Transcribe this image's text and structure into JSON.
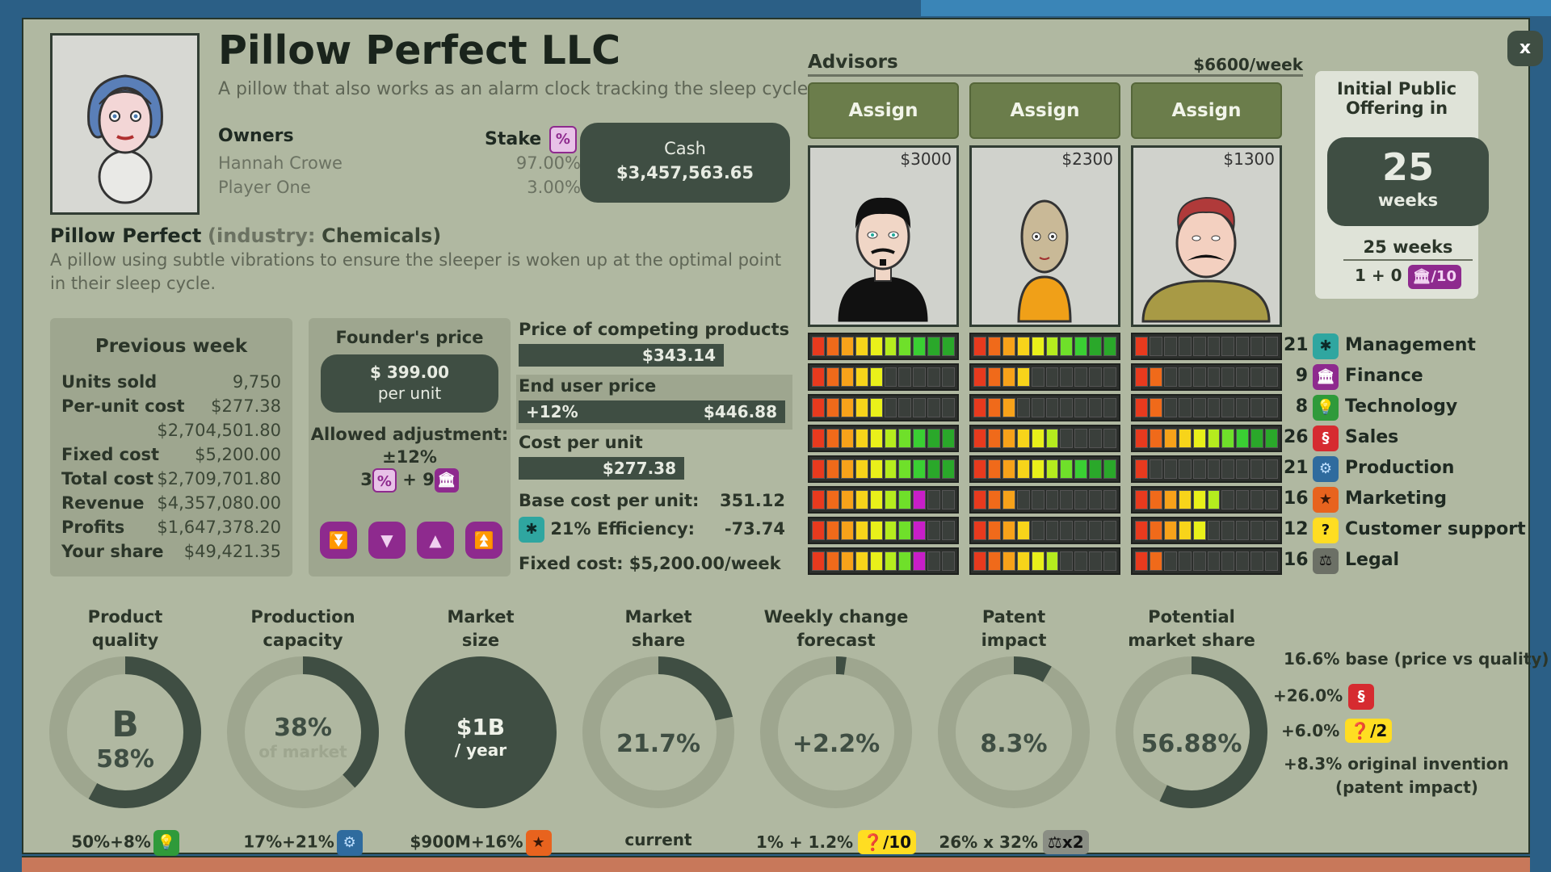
{
  "company": {
    "name": "Pillow Perfect LLC",
    "tagline": "A pillow that also works as an alarm clock tracking the sleep cycle.",
    "owners_header": "Owners",
    "stake_header": "Stake",
    "owners": [
      {
        "name": "Hannah Crowe",
        "stake": "97.00%"
      },
      {
        "name": "Player One",
        "stake": "3.00%"
      }
    ],
    "cash_label": "Cash",
    "cash_value": "$3,457,563.65"
  },
  "product": {
    "name": "Pillow Perfect",
    "industry_prefix": "(industry:",
    "industry": "Chemicals)",
    "description": "A pillow using subtle vibrations to ensure the sleeper is woken up at the optimal point in their sleep cycle."
  },
  "previous_week": {
    "title": "Previous week",
    "rows": [
      {
        "label": "Units sold",
        "value": "9,750"
      },
      {
        "label": "Per-unit cost",
        "value": "$277.38"
      },
      {
        "label": "",
        "value": "$2,704,501.80"
      },
      {
        "label": "Fixed cost",
        "value": "$5,200.00"
      },
      {
        "label": "Total cost",
        "value": "$2,709,701.80"
      },
      {
        "label": "Revenue",
        "value": "$4,357,080.00"
      },
      {
        "label": "Profits",
        "value": "$1,647,378.20"
      },
      {
        "label": "Your share",
        "value": "$49,421.35"
      }
    ]
  },
  "founder": {
    "title": "Founder's price",
    "price": "$ 399.00",
    "per_unit": "per unit",
    "allowed_label": "Allowed adjustment:",
    "allowed_value": "±12%",
    "adj_a": "3",
    "adj_plus": "+ 9"
  },
  "pricing": {
    "competing_label": "Price of competing products",
    "competing_value": "$343.14",
    "end_user_label": "End user price",
    "end_user_pct": "+12%",
    "end_user_value": "$446.88",
    "cost_label": "Cost per unit",
    "cost_value": "$277.38",
    "base_label": "Base cost per unit:",
    "base_value": "351.12",
    "efficiency_label": "21% Efficiency:",
    "efficiency_value": "-73.74",
    "fixed_label": "Fixed cost: $5,200.00/week"
  },
  "advisors": {
    "title": "Advisors",
    "weekly": "$6600/week",
    "assign_label": "Assign",
    "cards": [
      {
        "price": "$3000",
        "meters": [
          10,
          5,
          5,
          10,
          10,
          8,
          8,
          8
        ]
      },
      {
        "price": "$2300",
        "meters": [
          10,
          4,
          3,
          6,
          10,
          3,
          4,
          6
        ]
      },
      {
        "price": "$1300",
        "meters": [
          1,
          2,
          2,
          10,
          1,
          6,
          5,
          2
        ]
      }
    ],
    "skills": [
      {
        "num": "21",
        "label": "Management",
        "icon": "management-icon"
      },
      {
        "num": "9",
        "label": "Finance",
        "icon": "finance-icon"
      },
      {
        "num": "8",
        "label": "Technology",
        "icon": "technology-icon"
      },
      {
        "num": "26",
        "label": "Sales",
        "icon": "sales-icon"
      },
      {
        "num": "21",
        "label": "Production",
        "icon": "production-icon"
      },
      {
        "num": "16",
        "label": "Marketing",
        "icon": "marketing-icon"
      },
      {
        "num": "12",
        "label": "Customer support",
        "icon": "customer-support-icon"
      },
      {
        "num": "16",
        "label": "Legal",
        "icon": "legal-icon"
      }
    ]
  },
  "ipo": {
    "title1": "Initial Public",
    "title2": "Offering in",
    "weeks_num": "25",
    "weeks_label": "weeks",
    "sub": "25 weeks",
    "formula": "1 + 0",
    "divisor": "/10"
  },
  "gauges": [
    {
      "t1": "Product",
      "t2": "quality",
      "main": "B",
      "sub": "58%",
      "foot": "50%+8%",
      "level": 0.58
    },
    {
      "t1": "Production",
      "t2": "capacity",
      "main": "38%",
      "sub": "of market",
      "foot": "17%+21%",
      "level": 0.38
    },
    {
      "t1": "Market",
      "t2": "size",
      "main": "$1B",
      "sub": "/ year",
      "foot": "$900M+16%",
      "level": 1.0
    },
    {
      "t1": "Market",
      "t2": "share",
      "main": "21.7%",
      "sub": "",
      "foot": "current",
      "level": 0.217
    },
    {
      "t1": "Weekly change",
      "t2": "forecast",
      "main": "+2.2%",
      "sub": "",
      "foot": "1% + 1.2%",
      "foot_tag": "/10",
      "level": 0.022
    },
    {
      "t1": "Patent",
      "t2": "impact",
      "main": "8.3%",
      "sub": "",
      "foot": "26% x 32%",
      "foot_tag": "x2",
      "level": 0.083
    },
    {
      "t1": "Potential",
      "t2": "market share",
      "main": "56.88%",
      "sub": "",
      "foot": "",
      "level": 0.5688
    }
  ],
  "potential": {
    "base": "16.6% base (price vs quality)",
    "sales": "+26.0%",
    "support": "+6.0%",
    "support_tag": "/2",
    "invention1": "+8.3% original invention",
    "invention2": "(patent impact)"
  },
  "close_label": "x",
  "colors": {
    "panel": "#b0b8a1",
    "dark": "#3f4e43",
    "purple": "#8e2a8e",
    "assign": "#6b7d4b"
  }
}
